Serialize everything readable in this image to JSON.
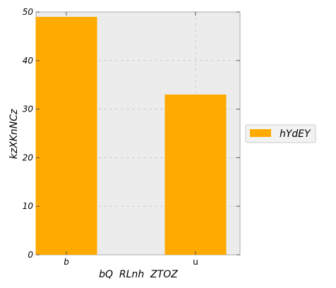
{
  "chart_data": {
    "type": "bar",
    "categories": [
      "b",
      "u"
    ],
    "series": [
      {
        "name": "hYdEY",
        "values": [
          49,
          33
        ],
        "color": "#ffaa00"
      }
    ],
    "xlabel": "bQ  RLnh  ZTOZ",
    "ylabel": "kzXKnNCz",
    "ylim": [
      0,
      50
    ],
    "yticks": [
      0,
      10,
      20,
      30,
      40,
      50
    ],
    "grid": true,
    "legend_position": "right",
    "plot_background": "#ececec"
  }
}
